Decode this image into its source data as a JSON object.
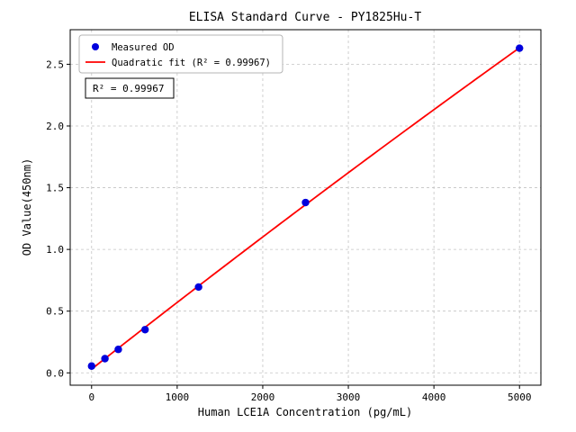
{
  "figure": {
    "title": "ELISA Standard Curve - PY1825Hu-T"
  },
  "chart_data": {
    "type": "scatter",
    "title": "ELISA Standard Curve - PY1825Hu-T",
    "xlabel": "Human LCE1A Concentration (pg/mL)",
    "ylabel": "OD Value(450nm)",
    "xlim": [
      -250,
      5250
    ],
    "ylim": [
      -0.1,
      2.78
    ],
    "xticks": [
      0,
      1000,
      2000,
      3000,
      4000,
      5000
    ],
    "yticks": [
      0.0,
      0.5,
      1.0,
      1.5,
      2.0,
      2.5
    ],
    "grid": true,
    "grid_style": "dashed",
    "legend_position": "upper-left",
    "annotation": "R² = 0.99967",
    "colors": {
      "scatter": "#0000dd",
      "fit_line": "#ff0000",
      "grid": "#c3c3c3",
      "axes": "#000000"
    },
    "series": [
      {
        "name": "Measured OD",
        "type": "scatter",
        "color": "#0000dd",
        "x": [
          0,
          156,
          312,
          625,
          1250,
          2500,
          5000
        ],
        "y": [
          0.055,
          0.115,
          0.19,
          0.35,
          0.695,
          1.38,
          2.63
        ]
      },
      {
        "name": "Quadratic fit (R² = 0.99967)",
        "type": "line",
        "fit": "quadratic",
        "color": "#ff0000"
      }
    ]
  }
}
